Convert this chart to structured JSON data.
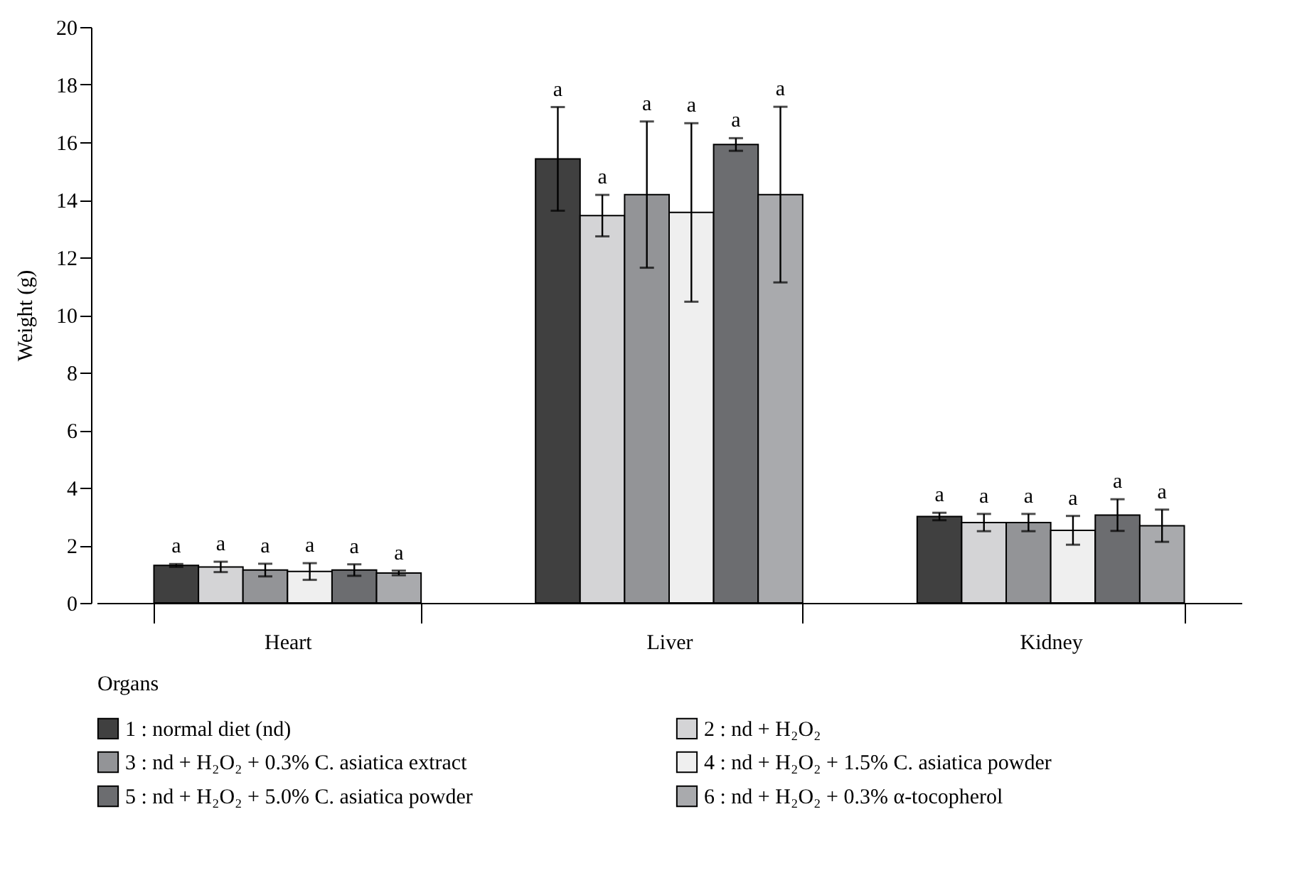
{
  "chart_data": {
    "type": "bar",
    "xlabel": "Organs",
    "ylabel": "Weight (g)",
    "categories": [
      "Heart",
      "Liver",
      "Kidney"
    ],
    "series": [
      {
        "name": "1 : normal diet (nd)",
        "color": "#404040",
        "values": [
          1.3,
          15.42,
          3.0
        ],
        "errors": [
          0.05,
          1.8,
          0.13
        ]
      },
      {
        "name": "2 : nd + H₂O₂",
        "color": "#d4d4d6",
        "values": [
          1.25,
          13.45,
          2.79
        ],
        "errors": [
          0.18,
          0.72,
          0.3
        ]
      },
      {
        "name": "3 : nd + H₂O₂ + 0.3% C. asiatica extract",
        "color": "#939497",
        "values": [
          1.14,
          14.18,
          2.79
        ],
        "errors": [
          0.22,
          2.54,
          0.3
        ]
      },
      {
        "name": "4 : nd + H₂O₂ + 1.5% C. asiatica powder",
        "color": "#efefef",
        "values": [
          1.09,
          13.56,
          2.52
        ],
        "errors": [
          0.29,
          3.1,
          0.5
        ]
      },
      {
        "name": "5 : nd + H₂O₂ + 5.0% C. asiatica powder",
        "color": "#6c6d70",
        "values": [
          1.14,
          15.92,
          3.05
        ],
        "errors": [
          0.2,
          0.22,
          0.55
        ]
      },
      {
        "name": "6 : nd + H₂O₂ + 0.3% α-tocopherol",
        "color": "#a9aaad",
        "values": [
          1.04,
          14.18,
          2.68
        ],
        "errors": [
          0.08,
          3.05,
          0.56
        ]
      }
    ],
    "ylim": [
      0,
      20
    ],
    "yticks": [
      0,
      2,
      4,
      6,
      8,
      10,
      12,
      14,
      16,
      18,
      20
    ],
    "grid": false,
    "legend": "bottom",
    "annotations": [
      "a",
      "a",
      "a",
      "a",
      "a",
      "a",
      "a",
      "a",
      "a",
      "a",
      "a",
      "a",
      "a",
      "a",
      "a",
      "a",
      "a",
      "a"
    ]
  }
}
